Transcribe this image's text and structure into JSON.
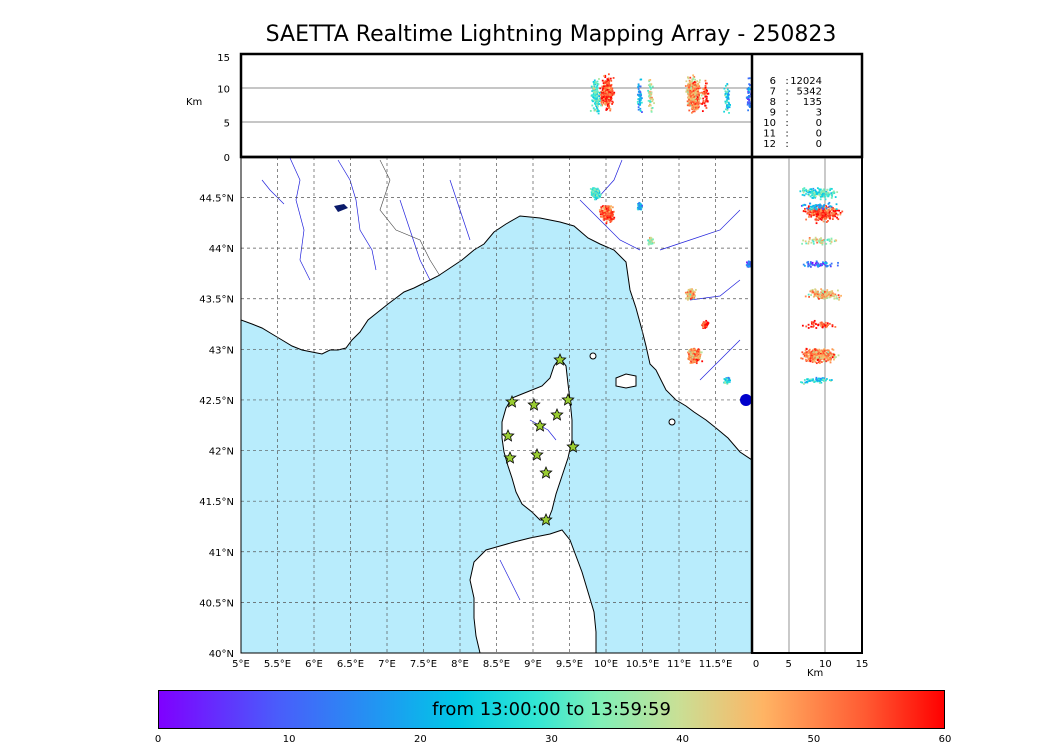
{
  "title": "SAETTA Realtime Lightning Mapping Array - 250823",
  "top_panel": {
    "ylabel": "Km",
    "y_ticks": [
      "15",
      "10",
      "5",
      "0"
    ]
  },
  "side_panel": {
    "xlabel": "Km",
    "x_ticks": [
      "0",
      "5",
      "10",
      "15"
    ]
  },
  "map": {
    "lat_ticks": [
      "44.5°N",
      "44°N",
      "43.5°N",
      "43°N",
      "42.5°N",
      "42°N",
      "41.5°N",
      "41°N",
      "40.5°N",
      "40°N"
    ],
    "lon_ticks": [
      "5°E",
      "5.5°E",
      "6°E",
      "6.5°E",
      "7°E",
      "7.5°E",
      "8°E",
      "8.5°E",
      "9°E",
      "9.5°E",
      "10°E",
      "10.5°E",
      "11°E",
      "11.5°E"
    ],
    "sea_color": "#b8ecfc",
    "land_color": "#ffffff",
    "station_color": "#9acd32"
  },
  "altitude_counts": [
    {
      "km": "6",
      "sep": ":",
      "count": "12024",
      "color": "#ff0000"
    },
    {
      "km": "7",
      "sep": ":",
      "count": "5342",
      "color": "#000000"
    },
    {
      "km": "8",
      "sep": ":",
      "count": "135",
      "color": "#000000"
    },
    {
      "km": "9",
      "sep": ":",
      "count": "3",
      "color": "#000000"
    },
    {
      "km": "10",
      "sep": ":",
      "count": "0",
      "color": "#000000"
    },
    {
      "km": "11",
      "sep": ":",
      "count": "0",
      "color": "#000000"
    },
    {
      "km": "12",
      "sep": ":",
      "count": "0",
      "color": "#000000"
    }
  ],
  "colorbar": {
    "label": "from 13:00:00 to 13:59:59",
    "ticks": [
      "0",
      "10",
      "20",
      "30",
      "40",
      "50",
      "60"
    ],
    "range": [
      0,
      60
    ]
  },
  "chart_data": {
    "type": "scatter",
    "title": "SAETTA Realtime Lightning Mapping Array - 250823",
    "xlim": [
      5,
      12
    ],
    "ylim": [
      40,
      44.9
    ],
    "alt_lim_km": [
      0,
      15
    ],
    "color_scale_minutes": [
      0,
      60
    ],
    "clusters": [
      {
        "lon": 10.0,
        "lat": 44.35,
        "alt_km": 9.5,
        "minutes": 55,
        "density": "high"
      },
      {
        "lon": 9.85,
        "lat": 44.55,
        "alt_km": 9,
        "minutes": 30,
        "density": "medium"
      },
      {
        "lon": 10.45,
        "lat": 44.42,
        "alt_km": 9,
        "minutes": 20,
        "density": "low"
      },
      {
        "lon": 10.6,
        "lat": 44.08,
        "alt_km": 9,
        "minutes": 40,
        "density": "low"
      },
      {
        "lon": 11.15,
        "lat": 43.55,
        "alt_km": 9.5,
        "minutes": 45,
        "density": "medium"
      },
      {
        "lon": 11.2,
        "lat": 42.95,
        "alt_km": 9,
        "minutes": 50,
        "density": "high"
      },
      {
        "lon": 11.35,
        "lat": 43.25,
        "alt_km": 9,
        "minutes": 58,
        "density": "low"
      },
      {
        "lon": 11.65,
        "lat": 42.7,
        "alt_km": 8.5,
        "minutes": 25,
        "density": "low"
      },
      {
        "lon": 11.95,
        "lat": 43.85,
        "alt_km": 9,
        "minutes": 10,
        "density": "low"
      }
    ]
  }
}
